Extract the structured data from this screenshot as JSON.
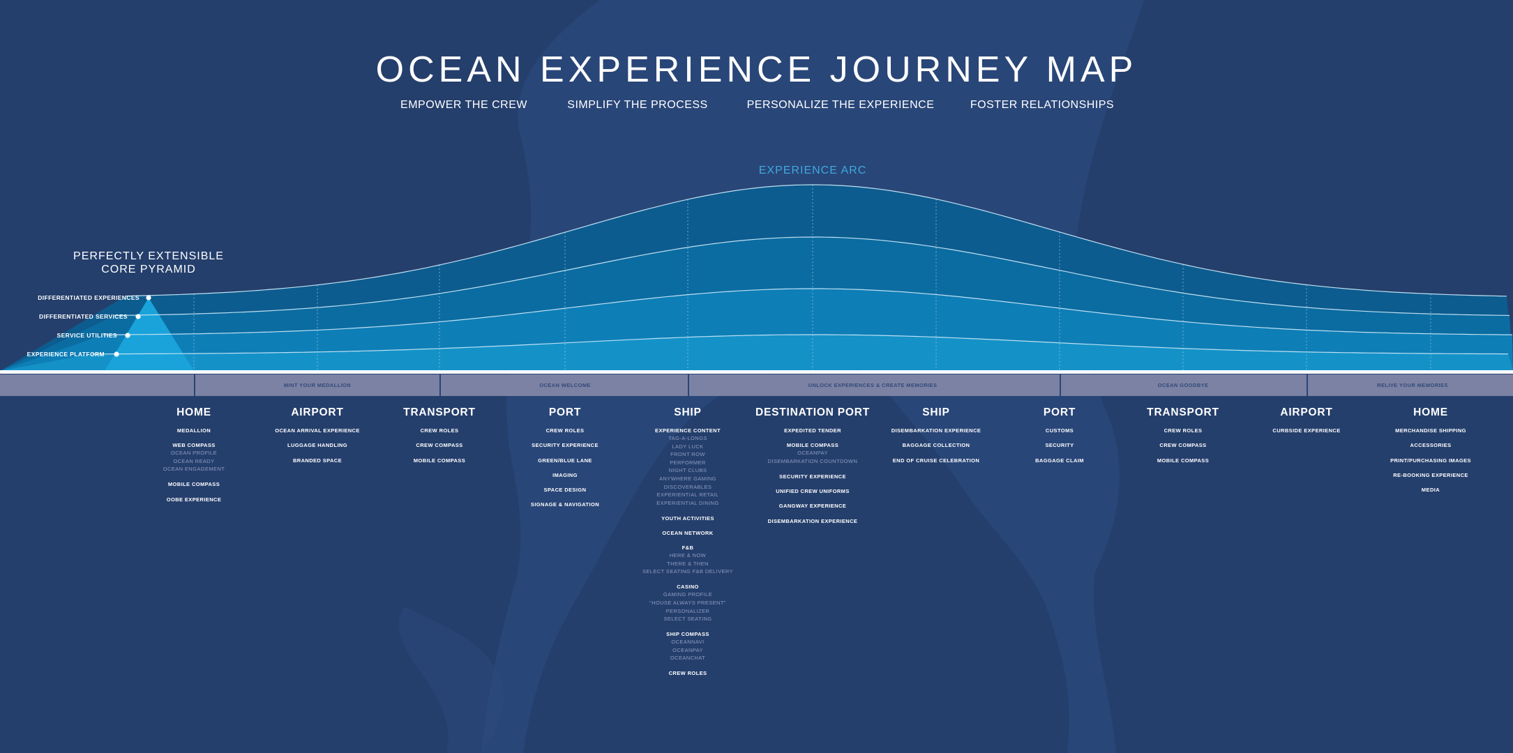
{
  "title": "OCEAN EXPERIENCE JOURNEY MAP",
  "pillars": [
    "EMPOWER THE CREW",
    "SIMPLIFY THE PROCESS",
    "PERSONALIZE THE EXPERIENCE",
    "FOSTER RELATIONSHIPS"
  ],
  "colors": {
    "background": "#253f6c",
    "arc_layer_top": "#0b5e93",
    "arc_layer_bottom": "#1a9fd4",
    "accent_text": "#3fa9de",
    "band": "#7b82a3"
  },
  "arc": {
    "label": "EXPERIENCE ARC",
    "curves": [
      "Differentiated Experiences",
      "Differentiated Services",
      "Service Utilities",
      "Experience Platform"
    ]
  },
  "pyramid": {
    "title": [
      "PERFECTLY EXTENSIBLE",
      "CORE PYRAMID"
    ],
    "layers": [
      "DIFFERENTIATED EXPERIENCES",
      "DIFFERENTIATED SERVICES",
      "SERVICE UTILITIES",
      "EXPERIENCE PLATFORM"
    ]
  },
  "phases": [
    "MINT YOUR MEDALLION",
    "OCEAN WELCOME",
    "UNLOCK EXPERIENCES & CREATE MEMORIES",
    "OCEAN GOODBYE",
    "RELIVE  YOUR MEMORIES"
  ],
  "stages": [
    {
      "title": "HOME",
      "items": [
        {
          "label": "MEDALLION",
          "sub": []
        },
        {
          "label": "WEB COMPASS",
          "sub": [
            "OCEAN PROFILE",
            "OCEAN READY",
            "OCEAN ENGAGEMENT"
          ]
        },
        {
          "label": "MOBILE COMPASS",
          "sub": []
        },
        {
          "label": "OOBE EXPERIENCE",
          "sub": []
        }
      ]
    },
    {
      "title": "AIRPORT",
      "items": [
        {
          "label": "OCEAN ARRIVAL EXPERIENCE",
          "sub": []
        },
        {
          "label": "LUGGAGE HANDLING",
          "sub": []
        },
        {
          "label": "BRANDED SPACE",
          "sub": []
        }
      ]
    },
    {
      "title": "TRANSPORT",
      "items": [
        {
          "label": "CREW ROLES",
          "sub": []
        },
        {
          "label": "CREW COMPASS",
          "sub": []
        },
        {
          "label": "MOBILE COMPASS",
          "sub": []
        }
      ]
    },
    {
      "title": "PORT",
      "items": [
        {
          "label": "CREW ROLES",
          "sub": []
        },
        {
          "label": "SECURITY EXPERIENCE",
          "sub": []
        },
        {
          "label": "GREEN/BLUE LANE",
          "sub": []
        },
        {
          "label": "IMAGING",
          "sub": []
        },
        {
          "label": "SPACE DESIGN",
          "sub": []
        },
        {
          "label": "SIGNAGE & NAVIGATION",
          "sub": []
        }
      ]
    },
    {
      "title": "SHIP",
      "items": [
        {
          "label": "EXPERIENCE CONTENT",
          "sub": [
            "TAG-A-LONGS",
            "LADY LUCK",
            "FRONT ROW",
            "PERFORMER",
            "NIGHT CLUBS",
            "ANYWHERE GAMING",
            "DISCOVERABLES",
            "EXPERIENTIAL RETAIL",
            "EXPERIENTIAL DINING"
          ]
        },
        {
          "label": "YOUTH ACTIVITIES",
          "sub": []
        },
        {
          "label": "OCEAN NETWORK",
          "sub": []
        },
        {
          "label": "F&B",
          "sub": [
            "HERE & NOW",
            "THERE & THEN",
            "SELECT SEATING F&B DELIVERY"
          ]
        },
        {
          "label": "CASINO",
          "sub": [
            "GAMING PROFILE",
            "“HOUSE ALWAYS PRESENT”",
            "PERSONALIZER",
            "SELECT SEATING"
          ]
        },
        {
          "label": "SHIP COMPASS",
          "sub": [
            "OCEANNAVI",
            "OCEANPAY",
            "OCEANCHAT"
          ]
        },
        {
          "label": "CREW ROLES",
          "sub": []
        }
      ]
    },
    {
      "title": "DESTINATION PORT",
      "items": [
        {
          "label": "EXPEDITED TENDER",
          "sub": []
        },
        {
          "label": "MOBILE COMPASS",
          "sub": [
            "OCEANPAY",
            "DISEMBARKATION COUNTDOWN"
          ]
        },
        {
          "label": "SECURITY EXPERIENCE",
          "sub": []
        },
        {
          "label": "UNIFIED CREW UNIFORMS",
          "sub": []
        },
        {
          "label": "GANGWAY EXPERIENCE",
          "sub": []
        },
        {
          "label": "DISEMBARKATION EXPERIENCE",
          "sub": []
        }
      ]
    },
    {
      "title": "SHIP",
      "items": [
        {
          "label": "DISEMBARKATION EXPERIENCE",
          "sub": []
        },
        {
          "label": "BAGGAGE COLLECTION",
          "sub": []
        },
        {
          "label": "END OF CRUISE CELEBRATION",
          "sub": []
        }
      ]
    },
    {
      "title": "PORT",
      "items": [
        {
          "label": "CUSTOMS",
          "sub": []
        },
        {
          "label": "SECURITY",
          "sub": []
        },
        {
          "label": "BAGGAGE CLAIM",
          "sub": []
        }
      ]
    },
    {
      "title": "TRANSPORT",
      "items": [
        {
          "label": "CREW ROLES",
          "sub": []
        },
        {
          "label": "CREW COMPASS",
          "sub": []
        },
        {
          "label": "MOBILE COMPASS",
          "sub": []
        }
      ]
    },
    {
      "title": "AIRPORT",
      "items": [
        {
          "label": "CURBSIDE EXPERIENCE",
          "sub": []
        }
      ]
    },
    {
      "title": "HOME",
      "items": [
        {
          "label": "MERCHANDISE SHIPPING",
          "sub": []
        },
        {
          "label": "ACCESSORIES",
          "sub": []
        },
        {
          "label": "PRINT/PURCHASING IMAGES",
          "sub": []
        },
        {
          "label": "RE-BOOKING EXPERIENCE",
          "sub": []
        },
        {
          "label": "MEDIA",
          "sub": []
        }
      ]
    }
  ]
}
